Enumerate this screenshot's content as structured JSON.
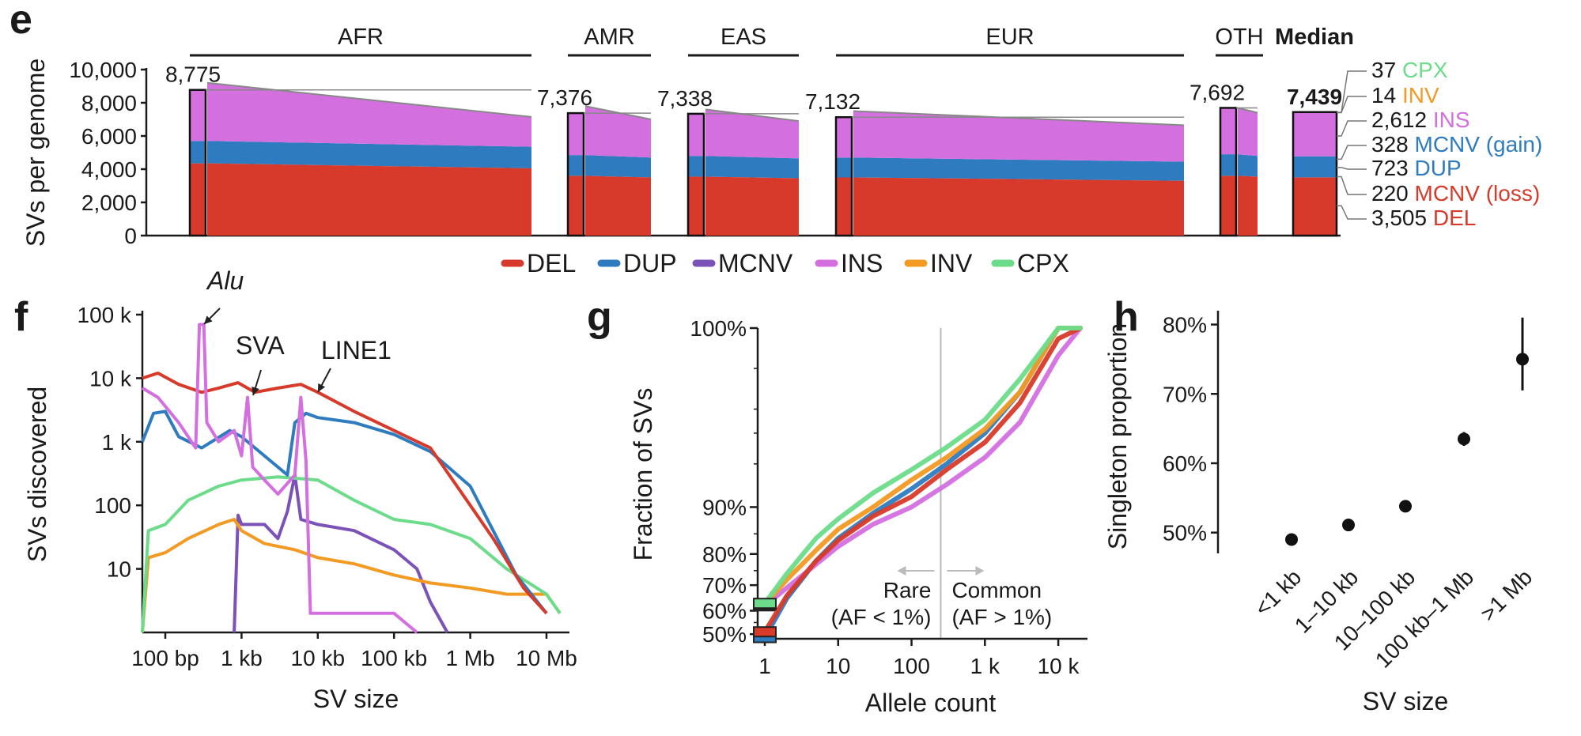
{
  "colors": {
    "DEL": "#d73a2a",
    "DUP": "#2e7bc0",
    "MCNV": "#7b52b8",
    "INS": "#d46fe0",
    "INV": "#f39a22",
    "CPX": "#6cdc8a",
    "axis": "#1a1a1a",
    "ref": "#bbbbbb",
    "cap": "#888888"
  },
  "panel_labels": [
    "e",
    "f",
    "g",
    "h"
  ],
  "legend": [
    "DEL",
    "DUP",
    "MCNV",
    "INS",
    "INV",
    "CPX"
  ],
  "chart_data": [
    {
      "panel": "e",
      "type": "bar",
      "ylabel": "SVs per genome",
      "ylim": [
        0,
        10000
      ],
      "yticks": [
        "0",
        "2,000",
        "4,000",
        "6,000",
        "8,000",
        "10,000"
      ],
      "groups": [
        {
          "name": "AFR",
          "peak_label": "8,775",
          "max_total": 9200,
          "min_total": 7150,
          "del": [
            4350,
            4050
          ],
          "dup": [
            5700,
            5350
          ],
          "count": 1
        },
        {
          "name": "AMR",
          "peak_label": "7,376",
          "max_total": 7800,
          "min_total": 7000,
          "del": [
            3600,
            3500
          ],
          "dup": [
            4850,
            4700
          ],
          "count": 1
        },
        {
          "name": "EAS",
          "peak_label": "7,338",
          "max_total": 7600,
          "min_total": 6900,
          "del": [
            3550,
            3450
          ],
          "dup": [
            4800,
            4650
          ],
          "count": 1
        },
        {
          "name": "EUR",
          "peak_label": "7,132",
          "max_total": 7500,
          "min_total": 6650,
          "del": [
            3500,
            3300
          ],
          "dup": [
            4700,
            4450
          ],
          "count": 1
        },
        {
          "name": "OTH",
          "peak_label": "7,692",
          "max_total": 7692,
          "min_total": 7400,
          "del": [
            3600,
            3550
          ],
          "dup": [
            4900,
            4800
          ],
          "count": 1
        },
        {
          "name": "Median",
          "peak_label": "7,439",
          "max_total": 7439,
          "min_total": 7439,
          "del": [
            3505,
            3505
          ],
          "dup": [
            4776,
            4776
          ],
          "count": 1
        }
      ],
      "median_breakdown": [
        {
          "count": "37",
          "type": "CPX"
        },
        {
          "count": "14",
          "type": "INV"
        },
        {
          "count": "2,612",
          "type": "INS"
        },
        {
          "count": "328",
          "type": "MCNV (gain)"
        },
        {
          "count": "723",
          "type": "DUP"
        },
        {
          "count": "220",
          "type": "MCNV (loss)"
        },
        {
          "count": "3,505",
          "type": "DEL"
        }
      ],
      "median_breakdown_colors": [
        "CPX",
        "INV",
        "INS",
        "DUP",
        "DUP",
        "DEL",
        "DEL"
      ]
    },
    {
      "panel": "f",
      "type": "line",
      "xlabel": "SV size",
      "ylabel": "SVs discovered",
      "xscale": "log",
      "yscale": "log",
      "xlim": [
        50,
        20000000
      ],
      "ylim": [
        1,
        100000
      ],
      "xticks": [
        {
          "v": 100,
          "t": "100 bp"
        },
        {
          "v": 1000,
          "t": "1 kb"
        },
        {
          "v": 10000,
          "t": "10 kb"
        },
        {
          "v": 100000,
          "t": "100 kb"
        },
        {
          "v": 1000000,
          "t": "1 Mb"
        },
        {
          "v": 10000000,
          "t": "10 Mb"
        }
      ],
      "yticks": [
        {
          "v": 10,
          "t": "10"
        },
        {
          "v": 100,
          "t": "100"
        },
        {
          "v": 1000,
          "t": "1 k"
        },
        {
          "v": 10000,
          "t": "10 k"
        },
        {
          "v": 100000,
          "t": "100 k"
        }
      ],
      "annotations": [
        "Alu",
        "SVA",
        "LINE1"
      ],
      "series": [
        {
          "name": "DEL",
          "points": [
            [
              50,
              10000
            ],
            [
              80,
              12000
            ],
            [
              150,
              8000
            ],
            [
              300,
              6000
            ],
            [
              500,
              7000
            ],
            [
              900,
              8500
            ],
            [
              1500,
              6000
            ],
            [
              3000,
              7000
            ],
            [
              6000,
              8000
            ],
            [
              10000,
              6000
            ],
            [
              30000,
              3000
            ],
            [
              100000,
              1500
            ],
            [
              300000,
              800
            ],
            [
              1000000,
              100
            ],
            [
              2000000,
              30
            ],
            [
              5000000,
              5
            ],
            [
              10000000,
              2
            ]
          ]
        },
        {
          "name": "DUP",
          "points": [
            [
              50,
              1000
            ],
            [
              70,
              2800
            ],
            [
              100,
              3000
            ],
            [
              150,
              1200
            ],
            [
              300,
              800
            ],
            [
              700,
              1500
            ],
            [
              1000,
              1200
            ],
            [
              2000,
              600
            ],
            [
              4000,
              300
            ],
            [
              5000,
              2000
            ],
            [
              7000,
              2800
            ],
            [
              10000,
              2400
            ],
            [
              30000,
              2000
            ],
            [
              100000,
              1300
            ],
            [
              300000,
              700
            ],
            [
              1000000,
              200
            ],
            [
              2000000,
              40
            ],
            [
              4000000,
              8
            ],
            [
              10000000,
              2
            ]
          ]
        },
        {
          "name": "MCNV",
          "points": [
            [
              800,
              1
            ],
            [
              900,
              70
            ],
            [
              1000,
              50
            ],
            [
              2000,
              50
            ],
            [
              3000,
              30
            ],
            [
              4000,
              80
            ],
            [
              5000,
              300
            ],
            [
              6000,
              60
            ],
            [
              10000,
              50
            ],
            [
              30000,
              40
            ],
            [
              100000,
              20
            ],
            [
              200000,
              10
            ],
            [
              300000,
              3
            ],
            [
              500000,
              1
            ]
          ]
        },
        {
          "name": "INS",
          "points": [
            [
              50,
              7000
            ],
            [
              80,
              5000
            ],
            [
              150,
              2000
            ],
            [
              250,
              800
            ],
            [
              280,
              70000
            ],
            [
              320,
              70000
            ],
            [
              350,
              2000
            ],
            [
              500,
              1000
            ],
            [
              800,
              1500
            ],
            [
              1000,
              600
            ],
            [
              1200,
              5000
            ],
            [
              1400,
              400
            ],
            [
              2000,
              250
            ],
            [
              3000,
              150
            ],
            [
              5000,
              300
            ],
            [
              6000,
              5000
            ],
            [
              7000,
              500
            ],
            [
              8000,
              2
            ],
            [
              20000,
              2
            ],
            [
              100000,
              2
            ],
            [
              200000,
              1
            ]
          ]
        },
        {
          "name": "INV",
          "points": [
            [
              50,
              1
            ],
            [
              60,
              15
            ],
            [
              100,
              18
            ],
            [
              200,
              30
            ],
            [
              500,
              50
            ],
            [
              800,
              60
            ],
            [
              1000,
              40
            ],
            [
              2000,
              25
            ],
            [
              5000,
              20
            ],
            [
              10000,
              15
            ],
            [
              30000,
              12
            ],
            [
              100000,
              8
            ],
            [
              300000,
              6
            ],
            [
              1000000,
              5
            ],
            [
              3000000,
              4
            ],
            [
              10000000,
              4
            ],
            [
              15000000,
              2
            ]
          ]
        },
        {
          "name": "CPX",
          "points": [
            [
              50,
              1
            ],
            [
              60,
              40
            ],
            [
              100,
              50
            ],
            [
              200,
              120
            ],
            [
              500,
              200
            ],
            [
              1000,
              250
            ],
            [
              3000,
              280
            ],
            [
              10000,
              250
            ],
            [
              30000,
              120
            ],
            [
              100000,
              60
            ],
            [
              300000,
              50
            ],
            [
              1000000,
              30
            ],
            [
              3000000,
              10
            ],
            [
              10000000,
              4
            ],
            [
              15000000,
              2
            ]
          ]
        }
      ]
    },
    {
      "panel": "g",
      "type": "line",
      "xlabel": "Allele count",
      "ylabel": "Fraction of SVs",
      "xscale": "log",
      "yscale": "logit",
      "xlim": [
        0.8,
        25000
      ],
      "ylim": [
        0.48,
        1.0
      ],
      "xticks": [
        {
          "v": 1,
          "t": "1"
        },
        {
          "v": 10,
          "t": "10"
        },
        {
          "v": 100,
          "t": "100"
        },
        {
          "v": 1000,
          "t": "1 k"
        },
        {
          "v": 10000,
          "t": "10 k"
        }
      ],
      "yticks": [
        {
          "v": 0.5,
          "t": "50%"
        },
        {
          "v": 0.6,
          "t": "60%"
        },
        {
          "v": 0.7,
          "t": "70%"
        },
        {
          "v": 0.8,
          "t": "80%"
        },
        {
          "v": 0.9,
          "t": "90%"
        },
        {
          "v": 1.0,
          "t": "100%"
        }
      ],
      "threshold_ac": 250,
      "rare_label": "Rare",
      "rare_sub": "(AF < 1%)",
      "common_label": "Common",
      "common_sub": "(AF > 1%)",
      "series": [
        {
          "name": "DUP",
          "points": [
            [
              1,
              0.485
            ],
            [
              2,
              0.65
            ],
            [
              5,
              0.78
            ],
            [
              10,
              0.84
            ],
            [
              30,
              0.89
            ],
            [
              100,
              0.925
            ],
            [
              300,
              0.95
            ],
            [
              1000,
              0.97
            ],
            [
              3000,
              0.985
            ],
            [
              10000,
              0.995
            ],
            [
              20000,
              0.999
            ]
          ]
        },
        {
          "name": "INS",
          "points": [
            [
              1,
              0.62
            ],
            [
              2,
              0.69
            ],
            [
              5,
              0.77
            ],
            [
              10,
              0.82
            ],
            [
              30,
              0.87
            ],
            [
              100,
              0.9
            ],
            [
              300,
              0.93
            ],
            [
              1000,
              0.955
            ],
            [
              3000,
              0.975
            ],
            [
              10000,
              0.992
            ],
            [
              20000,
              0.999
            ]
          ]
        },
        {
          "name": "DEL",
          "points": [
            [
              1,
              0.51
            ],
            [
              2,
              0.66
            ],
            [
              5,
              0.78
            ],
            [
              10,
              0.835
            ],
            [
              30,
              0.885
            ],
            [
              100,
              0.915
            ],
            [
              300,
              0.945
            ],
            [
              1000,
              0.965
            ],
            [
              3000,
              0.982
            ],
            [
              10000,
              0.994
            ],
            [
              20000,
              0.999
            ]
          ]
        },
        {
          "name": "INV",
          "points": [
            [
              1,
              0.625
            ],
            [
              2,
              0.72
            ],
            [
              5,
              0.81
            ],
            [
              10,
              0.86
            ],
            [
              30,
              0.9
            ],
            [
              100,
              0.935
            ],
            [
              300,
              0.955
            ],
            [
              1000,
              0.972
            ],
            [
              3000,
              0.985
            ],
            [
              10000,
              0.995
            ],
            [
              20000,
              0.999
            ]
          ]
        },
        {
          "name": "CPX",
          "points": [
            [
              1,
              0.63
            ],
            [
              2,
              0.74
            ],
            [
              5,
              0.84
            ],
            [
              10,
              0.88
            ],
            [
              30,
              0.92
            ],
            [
              100,
              0.945
            ],
            [
              300,
              0.962
            ],
            [
              1000,
              0.976
            ],
            [
              3000,
              0.988
            ],
            [
              10000,
              0.996
            ],
            [
              20000,
              0.999
            ]
          ]
        }
      ]
    },
    {
      "panel": "h",
      "type": "scatter",
      "xlabel": "SV size",
      "ylabel": "Singleton proportion",
      "ylim": [
        0.47,
        0.82
      ],
      "yticks": [
        {
          "v": 0.5,
          "t": "50%"
        },
        {
          "v": 0.6,
          "t": "60%"
        },
        {
          "v": 0.7,
          "t": "70%"
        },
        {
          "v": 0.8,
          "t": "80%"
        }
      ],
      "categories": [
        "<1 kb",
        "1–10 kb",
        "10–100 kb",
        "100 kb–1 Mb",
        ">1 Mb"
      ],
      "values": [
        0.49,
        0.511,
        0.538,
        0.635,
        0.75
      ],
      "errors": [
        [
          0.488,
          0.492
        ],
        [
          0.509,
          0.513
        ],
        [
          0.535,
          0.541
        ],
        [
          0.625,
          0.645
        ],
        [
          0.705,
          0.81
        ]
      ]
    }
  ]
}
